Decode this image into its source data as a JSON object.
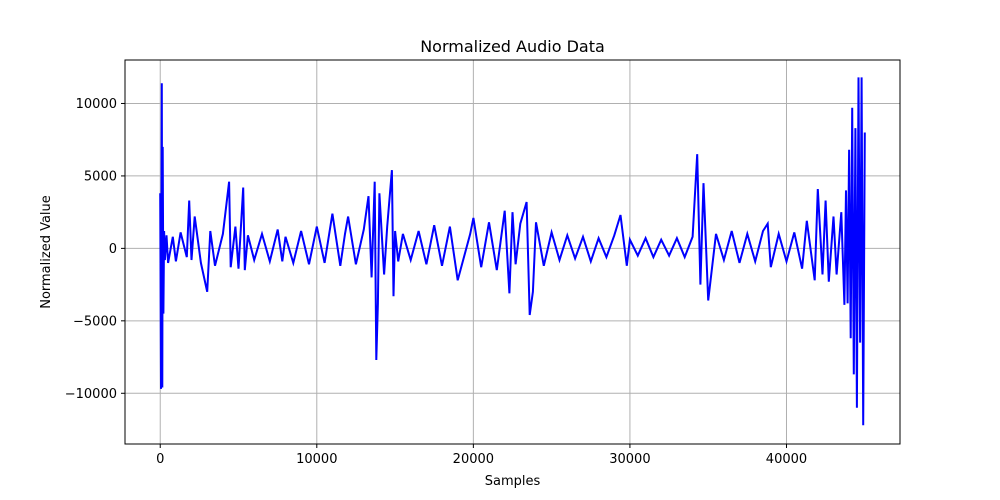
{
  "chart_data": {
    "type": "line",
    "title": "Normalized Audio Data",
    "xlabel": "Samples",
    "ylabel": "Normalized Value",
    "xlim": [
      -2250,
      47250
    ],
    "ylim": [
      -13500,
      13000
    ],
    "xticks": [
      0,
      10000,
      20000,
      30000,
      40000
    ],
    "yticks": [
      -10000,
      -5000,
      0,
      5000,
      10000
    ],
    "xtick_labels": [
      "0",
      "10000",
      "20000",
      "30000",
      "40000"
    ],
    "ytick_labels": [
      "−10000",
      "−5000",
      "0",
      "5000",
      "10000"
    ],
    "grid": true,
    "legend": "none",
    "series": [
      {
        "color": "#0000ff",
        "x": [
          0,
          50,
          100,
          130,
          160,
          200,
          250,
          300,
          400,
          500,
          800,
          1000,
          1300,
          1700,
          1850,
          2000,
          2200,
          2600,
          3000,
          3200,
          3500,
          4000,
          4400,
          4500,
          4800,
          5000,
          5300,
          5400,
          5600,
          6000,
          6500,
          7000,
          7500,
          7800,
          8000,
          8500,
          9000,
          9500,
          10000,
          10500,
          11000,
          11500,
          11800,
          12000,
          12500,
          13000,
          13300,
          13500,
          13700,
          13800,
          13900,
          14000,
          14300,
          14500,
          14800,
          14900,
          15000,
          15200,
          15500,
          16000,
          16500,
          17000,
          17500,
          18000,
          18500,
          19000,
          19800,
          20000,
          20500,
          21000,
          21500,
          22000,
          22300,
          22500,
          22700,
          23000,
          23400,
          23600,
          23800,
          24000,
          24500,
          25000,
          25500,
          26000,
          26500,
          27000,
          27500,
          28000,
          28500,
          29000,
          29400,
          29800,
          30000,
          30500,
          31000,
          31500,
          32000,
          32500,
          33000,
          33500,
          34000,
          34300,
          34500,
          34700,
          35000,
          35500,
          36000,
          36500,
          37000,
          37500,
          38000,
          38500,
          38800,
          39000,
          39500,
          40000,
          40500,
          41000,
          41300,
          41800,
          42000,
          42300,
          42500,
          42700,
          43000,
          43200,
          43500,
          43700,
          43800,
          43900,
          44000,
          44100,
          44200,
          44300,
          44400,
          44500,
          44600,
          44700,
          44800,
          44900,
          45000
        ],
        "y": [
          3800,
          -9700,
          11400,
          -9600,
          7000,
          -4500,
          1200,
          -800,
          900,
          -1000,
          800,
          -900,
          1100,
          -600,
          3300,
          -800,
          2200,
          -1000,
          -3000,
          1200,
          -1200,
          1000,
          4600,
          -1300,
          1500,
          -1400,
          4200,
          -1500,
          900,
          -800,
          1000,
          -900,
          1300,
          -900,
          800,
          -1000,
          1200,
          -1100,
          1500,
          -1000,
          2400,
          -1200,
          1000,
          2200,
          -1100,
          1300,
          3600,
          -2000,
          4600,
          -7700,
          -3800,
          3800,
          -1800,
          1500,
          5400,
          -3300,
          1200,
          -900,
          1000,
          -800,
          1200,
          -1100,
          1600,
          -1200,
          1500,
          -2200,
          1000,
          2100,
          -1300,
          1800,
          -1500,
          2600,
          -3100,
          2500,
          -1100,
          1700,
          3200,
          -4600,
          -3000,
          1800,
          -1200,
          1100,
          -800,
          900,
          -700,
          800,
          -900,
          700,
          -600,
          900,
          2300,
          -1200,
          600,
          -500,
          700,
          -600,
          600,
          -500,
          700,
          -600,
          800,
          6500,
          -2500,
          4500,
          -3600,
          1000,
          -800,
          1200,
          -1000,
          1000,
          -900,
          1200,
          1700,
          -1300,
          1000,
          -900,
          1100,
          -1400,
          1900,
          -2200,
          4100,
          -1800,
          3300,
          -2300,
          2200,
          -1800,
          2500,
          -3900,
          4000,
          -3800,
          6800,
          -6200,
          9700,
          -8700,
          8300,
          -11000,
          11800,
          -6500,
          11800,
          -12200,
          8000
        ]
      }
    ]
  }
}
